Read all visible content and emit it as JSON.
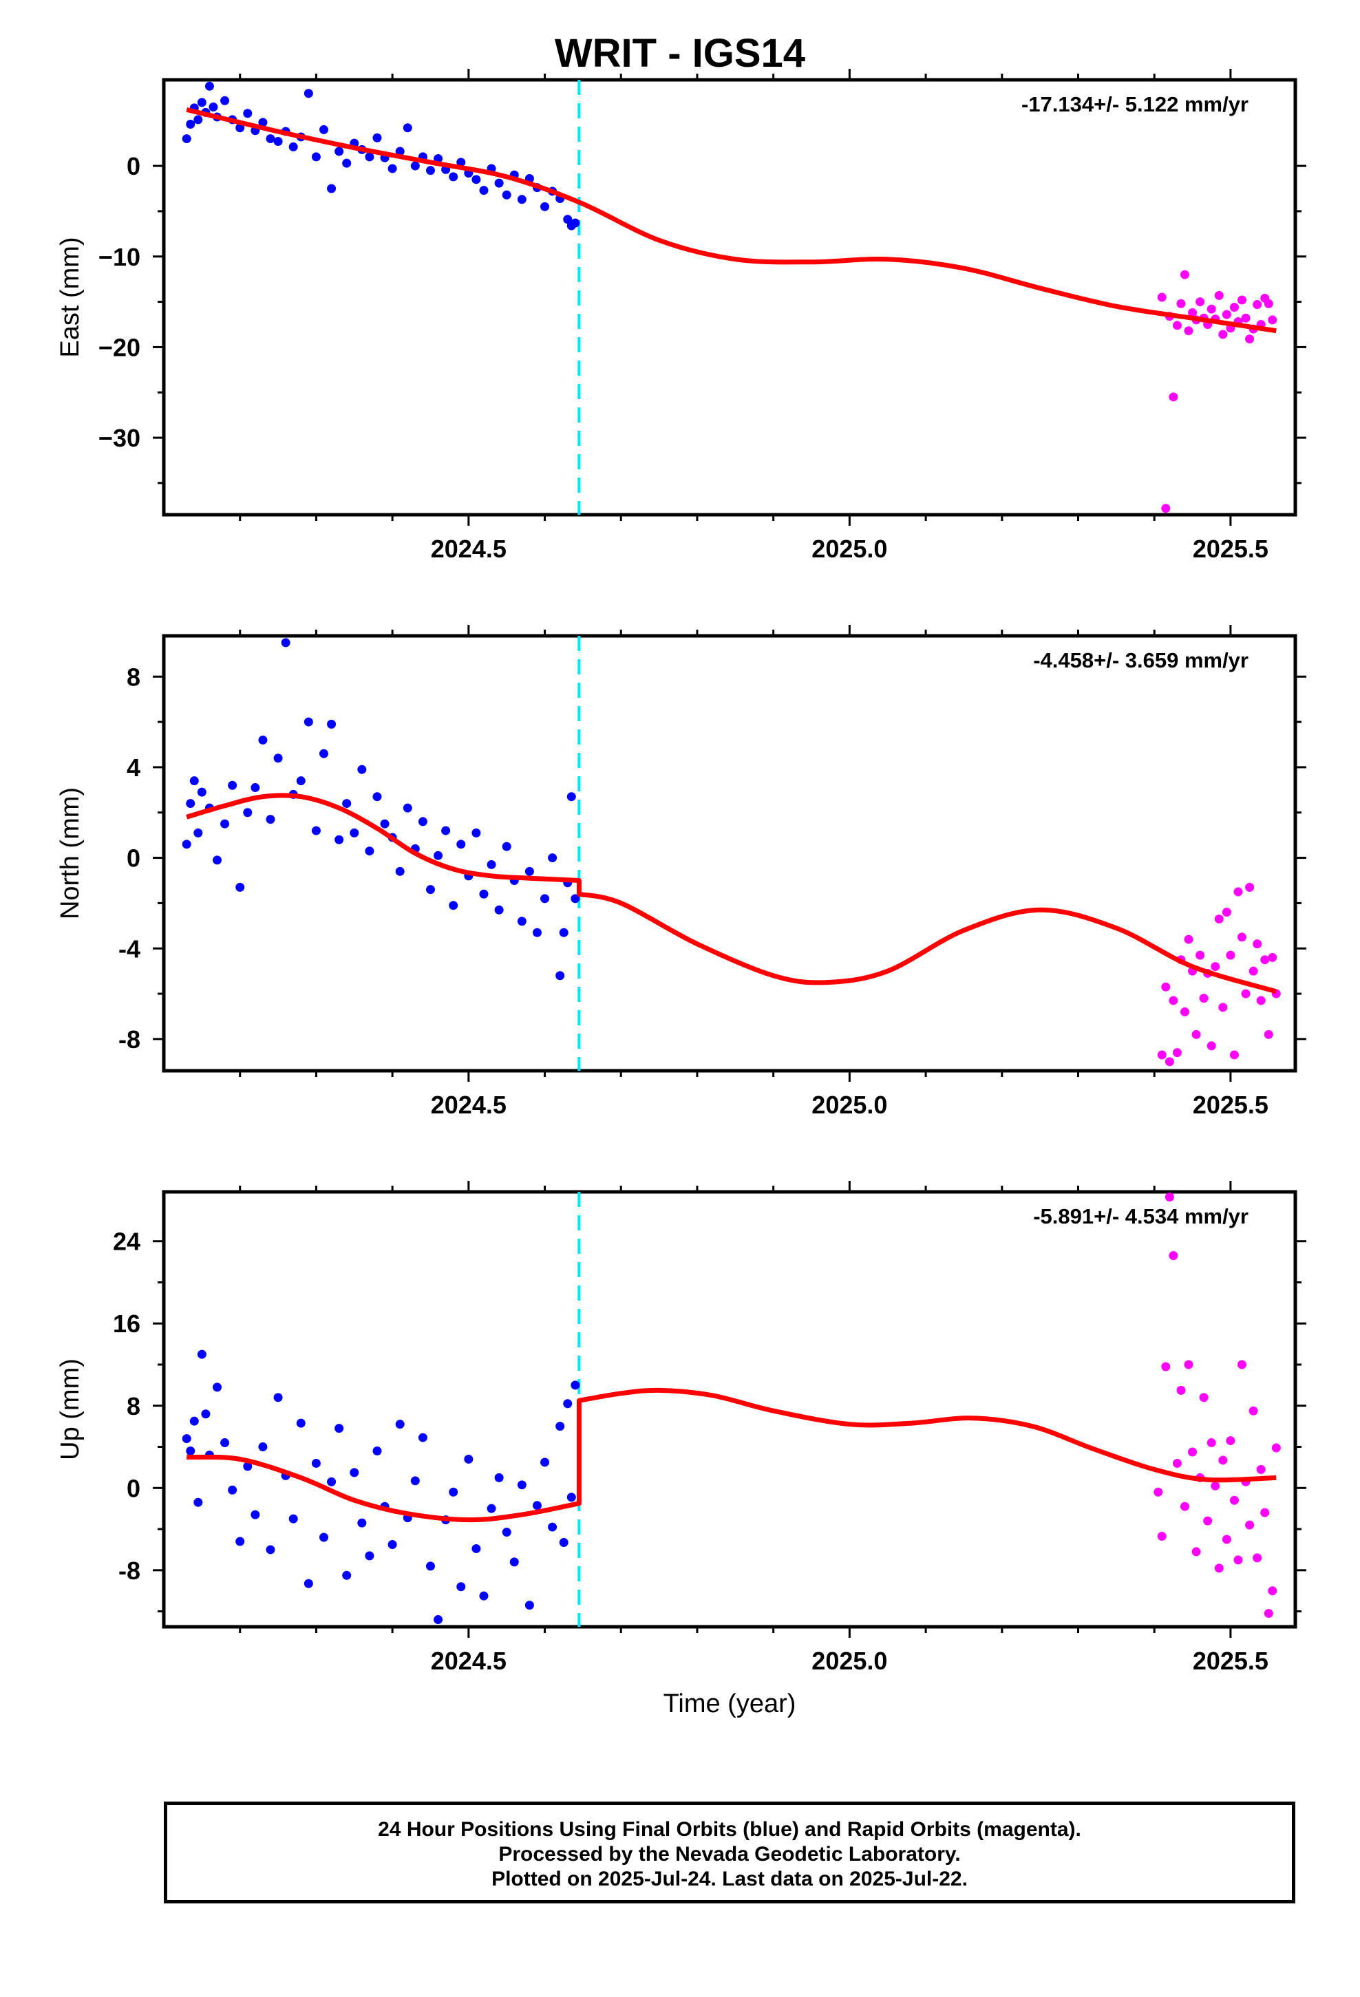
{
  "title": "WRIT - IGS14",
  "footer": {
    "line1": "24 Hour Positions Using Final Orbits (blue) and Rapid Orbits (magenta).",
    "line2": "Processed by the Nevada Geodetic Laboratory.",
    "line3": "Plotted on 2025-Jul-24. Last data on 2025-Jul-22."
  },
  "colors": {
    "final_orbits": "#0000ff",
    "rapid_orbits": "#ff00ff",
    "model_fit": "#ff0000",
    "break_line": "#00e5ff"
  },
  "chart_data": [
    {
      "type": "scatter",
      "ylabel": "East (mm)",
      "xlabel": "",
      "rate_label": "-17.134+/- 5.122 mm/yr",
      "xlim": [
        2024.1,
        2025.585
      ],
      "ylim": [
        -38.5,
        9.5
      ],
      "xticks": [
        2024.5,
        2025.0,
        2025.5
      ],
      "xtick_labels": [
        "2024.5",
        "2025.0",
        "2025.5"
      ],
      "yticks": [
        -30,
        -20,
        -10,
        0
      ],
      "ytick_labels": [
        "−30",
        "−20",
        "−10",
        "0"
      ],
      "break_x": 2024.645,
      "fit": {
        "x": [
          2024.13,
          2024.25,
          2024.35,
          2024.45,
          2024.55,
          2024.645,
          2024.75,
          2024.85,
          2024.95,
          2025.05,
          2025.15,
          2025.25,
          2025.35,
          2025.45,
          2025.56
        ],
        "y": [
          6.2,
          3.8,
          2.0,
          0.4,
          -1.2,
          -4.0,
          -8.2,
          -10.3,
          -10.6,
          -10.3,
          -11.3,
          -13.5,
          -15.5,
          -16.8,
          -18.2
        ]
      },
      "series": [
        {
          "name": "Final Orbits (blue)",
          "color": "#0000ff",
          "x": [
            2024.13,
            2024.135,
            2024.14,
            2024.145,
            2024.15,
            2024.155,
            2024.16,
            2024.165,
            2024.17,
            2024.18,
            2024.19,
            2024.2,
            2024.21,
            2024.22,
            2024.23,
            2024.24,
            2024.25,
            2024.26,
            2024.27,
            2024.28,
            2024.29,
            2024.3,
            2024.31,
            2024.32,
            2024.33,
            2024.34,
            2024.35,
            2024.36,
            2024.37,
            2024.38,
            2024.39,
            2024.4,
            2024.41,
            2024.42,
            2024.43,
            2024.44,
            2024.45,
            2024.46,
            2024.47,
            2024.48,
            2024.49,
            2024.5,
            2024.51,
            2024.52,
            2024.53,
            2024.54,
            2024.55,
            2024.56,
            2024.57,
            2024.58,
            2024.59,
            2024.6,
            2024.61,
            2024.62,
            2024.63,
            2024.635,
            2024.64
          ],
          "y": [
            3.0,
            4.6,
            6.4,
            5.1,
            7.0,
            5.9,
            8.8,
            6.5,
            5.4,
            7.2,
            5.1,
            4.2,
            5.8,
            3.9,
            4.8,
            3.0,
            2.7,
            3.8,
            2.1,
            3.2,
            8.0,
            1.0,
            4.0,
            -2.5,
            1.6,
            0.3,
            2.5,
            1.8,
            1.0,
            3.1,
            0.9,
            -0.3,
            1.6,
            4.2,
            0.0,
            1.0,
            -0.5,
            0.8,
            -0.4,
            -1.2,
            0.4,
            -0.8,
            -1.5,
            -2.7,
            -0.3,
            -1.9,
            -3.2,
            -1.0,
            -3.7,
            -1.4,
            -2.4,
            -4.5,
            -2.8,
            -3.6,
            -5.9,
            -6.6,
            -6.3
          ]
        },
        {
          "name": "Rapid Orbits (magenta)",
          "color": "#ff00ff",
          "x": [
            2025.41,
            2025.415,
            2025.42,
            2025.425,
            2025.43,
            2025.435,
            2025.44,
            2025.445,
            2025.45,
            2025.455,
            2025.46,
            2025.465,
            2025.47,
            2025.475,
            2025.48,
            2025.485,
            2025.49,
            2025.495,
            2025.5,
            2025.505,
            2025.51,
            2025.515,
            2025.52,
            2025.525,
            2025.53,
            2025.535,
            2025.54,
            2025.545,
            2025.55,
            2025.555
          ],
          "y": [
            -14.5,
            -37.8,
            -16.6,
            -25.5,
            -17.6,
            -15.2,
            -12.0,
            -18.2,
            -16.2,
            -17.0,
            -15.0,
            -16.8,
            -17.5,
            -15.8,
            -16.9,
            -14.3,
            -18.6,
            -16.4,
            -17.9,
            -15.6,
            -17.2,
            -14.8,
            -16.8,
            -19.1,
            -18.0,
            -15.3,
            -17.5,
            -14.6,
            -15.2,
            -17.0
          ]
        }
      ]
    },
    {
      "type": "scatter",
      "ylabel": "North (mm)",
      "xlabel": "",
      "rate_label": "-4.458+/- 3.659 mm/yr",
      "xlim": [
        2024.1,
        2025.585
      ],
      "ylim": [
        -9.4,
        9.8
      ],
      "xticks": [
        2024.5,
        2025.0,
        2025.5
      ],
      "xtick_labels": [
        "2024.5",
        "2025.0",
        "2025.5"
      ],
      "yticks": [
        -8,
        -4,
        0,
        4,
        8
      ],
      "ytick_labels": [
        "-8",
        "-4",
        "0",
        "4",
        "8"
      ],
      "break_x": 2024.645,
      "fit": {
        "x": [
          2024.13,
          2024.18,
          2024.23,
          2024.28,
          2024.33,
          2024.38,
          2024.43,
          2024.48,
          2024.53,
          2024.58,
          2024.645,
          2024.645,
          2024.7,
          2024.8,
          2024.9,
          2024.97,
          2025.05,
          2025.15,
          2025.25,
          2025.35,
          2025.45,
          2025.56
        ],
        "y": [
          1.8,
          2.3,
          2.7,
          2.7,
          2.2,
          1.3,
          0.2,
          -0.5,
          -0.8,
          -0.9,
          -1.0,
          -1.6,
          -2.0,
          -3.8,
          -5.2,
          -5.5,
          -5.0,
          -3.2,
          -2.3,
          -3.1,
          -4.8,
          -5.9
        ]
      },
      "series": [
        {
          "name": "Final Orbits (blue)",
          "color": "#0000ff",
          "x": [
            2024.13,
            2024.135,
            2024.14,
            2024.145,
            2024.15,
            2024.16,
            2024.17,
            2024.18,
            2024.19,
            2024.2,
            2024.21,
            2024.22,
            2024.23,
            2024.24,
            2024.25,
            2024.26,
            2024.27,
            2024.28,
            2024.29,
            2024.3,
            2024.31,
            2024.32,
            2024.33,
            2024.34,
            2024.35,
            2024.36,
            2024.37,
            2024.38,
            2024.39,
            2024.4,
            2024.41,
            2024.42,
            2024.43,
            2024.44,
            2024.45,
            2024.46,
            2024.47,
            2024.48,
            2024.49,
            2024.5,
            2024.51,
            2024.52,
            2024.53,
            2024.54,
            2024.55,
            2024.56,
            2024.57,
            2024.58,
            2024.59,
            2024.6,
            2024.61,
            2024.62,
            2024.625,
            2024.63,
            2024.635,
            2024.64
          ],
          "x_note": "",
          "y": [
            0.6,
            2.4,
            3.4,
            1.1,
            2.9,
            2.2,
            -0.1,
            1.5,
            3.2,
            -1.3,
            2.0,
            3.1,
            5.2,
            1.7,
            4.4,
            9.5,
            2.8,
            3.4,
            6.0,
            1.2,
            4.6,
            5.9,
            0.8,
            2.4,
            1.1,
            3.9,
            0.3,
            2.7,
            1.5,
            0.9,
            -0.6,
            2.2,
            0.4,
            1.6,
            -1.4,
            0.1,
            1.2,
            -2.1,
            0.6,
            -0.8,
            1.1,
            -1.6,
            -0.3,
            -2.3,
            0.5,
            -1.0,
            -2.8,
            -0.6,
            -3.3,
            -1.8,
            0.0,
            -5.2,
            -3.3,
            -1.1,
            2.7,
            -1.8
          ]
        },
        {
          "name": "Rapid Orbits (magenta)",
          "color": "#ff00ff",
          "x": [
            2025.41,
            2025.415,
            2025.42,
            2025.425,
            2025.43,
            2025.435,
            2025.44,
            2025.445,
            2025.45,
            2025.455,
            2025.46,
            2025.465,
            2025.47,
            2025.475,
            2025.48,
            2025.485,
            2025.49,
            2025.495,
            2025.5,
            2025.505,
            2025.51,
            2025.515,
            2025.52,
            2025.525,
            2025.53,
            2025.535,
            2025.54,
            2025.545,
            2025.55,
            2025.555,
            2025.56
          ],
          "y": [
            -8.7,
            -5.7,
            -9.0,
            -6.3,
            -8.6,
            -4.5,
            -6.8,
            -3.6,
            -5.0,
            -7.8,
            -4.3,
            -6.2,
            -5.1,
            -8.3,
            -4.8,
            -2.7,
            -6.6,
            -2.4,
            -4.3,
            -8.7,
            -1.5,
            -3.5,
            -6.0,
            -1.3,
            -5.0,
            -3.8,
            -6.3,
            -4.5,
            -7.8,
            -4.4,
            -6.0
          ]
        }
      ]
    },
    {
      "type": "scatter",
      "ylabel": "Up (mm)",
      "xlabel": "Time (year)",
      "rate_label": "-5.891+/- 4.534 mm/yr",
      "xlim": [
        2024.1,
        2025.585
      ],
      "ylim": [
        -13.5,
        28.8
      ],
      "xticks": [
        2024.5,
        2025.0,
        2025.5
      ],
      "xtick_labels": [
        "2024.5",
        "2025.0",
        "2025.5"
      ],
      "yticks": [
        -8,
        0,
        8,
        16,
        24
      ],
      "ytick_labels": [
        "-8",
        "0",
        "8",
        "16",
        "24"
      ],
      "break_x": 2024.645,
      "fit": {
        "x": [
          2024.13,
          2024.2,
          2024.28,
          2024.35,
          2024.42,
          2024.5,
          2024.57,
          2024.645,
          2024.645,
          2024.7,
          2024.75,
          2024.82,
          2024.9,
          2025.0,
          2025.08,
          2025.16,
          2025.24,
          2025.32,
          2025.4,
          2025.47,
          2025.56
        ],
        "y": [
          3.0,
          2.8,
          1.0,
          -1.2,
          -2.5,
          -3.1,
          -2.6,
          -1.5,
          8.5,
          9.2,
          9.5,
          9.0,
          7.5,
          6.2,
          6.3,
          6.8,
          6.0,
          3.8,
          1.8,
          0.8,
          1.0
        ]
      },
      "series": [
        {
          "name": "Final Orbits (blue)",
          "color": "#0000ff",
          "x": [
            2024.13,
            2024.135,
            2024.14,
            2024.145,
            2024.15,
            2024.155,
            2024.16,
            2024.17,
            2024.18,
            2024.19,
            2024.2,
            2024.21,
            2024.22,
            2024.23,
            2024.24,
            2024.25,
            2024.26,
            2024.27,
            2024.28,
            2024.29,
            2024.3,
            2024.31,
            2024.32,
            2024.33,
            2024.34,
            2024.35,
            2024.36,
            2024.37,
            2024.38,
            2024.39,
            2024.4,
            2024.41,
            2024.42,
            2024.43,
            2024.44,
            2024.45,
            2024.46,
            2024.47,
            2024.48,
            2024.49,
            2024.5,
            2024.51,
            2024.52,
            2024.53,
            2024.54,
            2024.55,
            2024.56,
            2024.57,
            2024.58,
            2024.59,
            2024.6,
            2024.61,
            2024.62,
            2024.625,
            2024.63,
            2024.635,
            2024.64
          ],
          "y": [
            4.8,
            3.6,
            6.5,
            -1.4,
            13.0,
            7.2,
            3.2,
            9.8,
            4.4,
            -0.2,
            -5.2,
            2.1,
            -2.6,
            4.0,
            -6.0,
            8.8,
            1.2,
            -3.0,
            6.3,
            -9.3,
            2.4,
            -4.8,
            0.6,
            5.8,
            -8.5,
            1.5,
            -3.4,
            -6.6,
            3.6,
            -1.8,
            -5.5,
            6.2,
            -2.9,
            0.7,
            4.9,
            -7.6,
            -12.8,
            -3.1,
            -0.4,
            -9.6,
            2.8,
            -5.9,
            -10.5,
            -2.0,
            1.0,
            -4.3,
            -7.2,
            0.3,
            -11.4,
            -1.7,
            2.5,
            -3.8,
            6.0,
            -5.3,
            8.2,
            -0.9,
            10.0
          ]
        },
        {
          "name": "Rapid Orbits (magenta)",
          "color": "#ff00ff",
          "x": [
            2025.405,
            2025.41,
            2025.415,
            2025.42,
            2025.425,
            2025.43,
            2025.435,
            2025.44,
            2025.445,
            2025.45,
            2025.455,
            2025.46,
            2025.465,
            2025.47,
            2025.475,
            2025.48,
            2025.485,
            2025.49,
            2025.495,
            2025.5,
            2025.505,
            2025.51,
            2025.515,
            2025.52,
            2025.525,
            2025.53,
            2025.535,
            2025.54,
            2025.545,
            2025.55,
            2025.555,
            2025.56
          ],
          "y": [
            -0.4,
            -4.7,
            11.8,
            28.3,
            22.6,
            2.4,
            9.5,
            -1.8,
            12.0,
            3.5,
            -6.2,
            1.0,
            8.8,
            -3.2,
            4.4,
            0.2,
            -7.8,
            2.7,
            -5.0,
            4.6,
            -1.2,
            -7.0,
            12.0,
            0.6,
            -3.6,
            7.5,
            -6.8,
            1.8,
            -2.4,
            -12.2,
            -10.0,
            3.9
          ]
        }
      ]
    }
  ]
}
